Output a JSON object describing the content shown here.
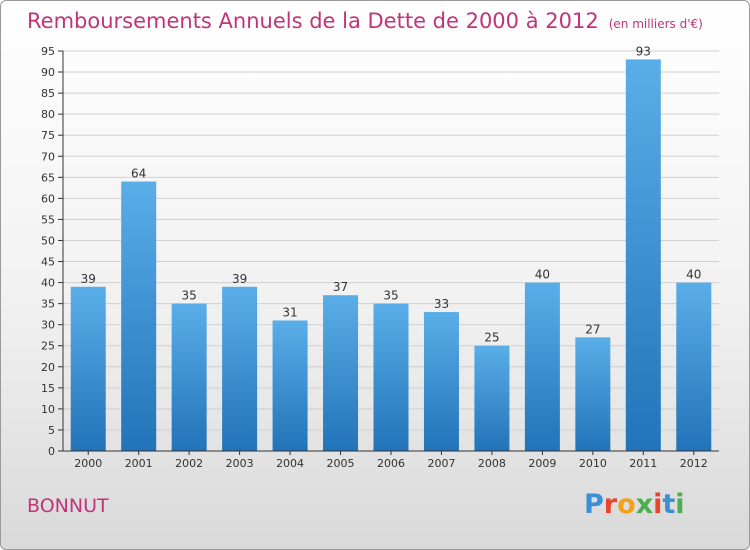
{
  "header": {
    "title": "Remboursements Annuels de la Dette de 2000 à 2012",
    "unit": "(en milliers d'€)"
  },
  "footer": {
    "commune": "BONNUT",
    "logo_text": "Proxiti",
    "logo_colors": [
      "#3a8fd6",
      "#e8452c",
      "#f2a21a",
      "#4cae4c",
      "#e8452c",
      "#3a8fd6",
      "#4cae4c"
    ]
  },
  "colors": {
    "accent": "#c2337a",
    "bar_top": "#5aaee8",
    "bar_bottom": "#2273b8",
    "grid": "#d0d0d0",
    "axis": "#333333"
  },
  "chart_data": {
    "type": "bar",
    "categories": [
      "2000",
      "2001",
      "2002",
      "2003",
      "2004",
      "2005",
      "2006",
      "2007",
      "2008",
      "2009",
      "2010",
      "2011",
      "2012"
    ],
    "values": [
      39,
      64,
      35,
      39,
      31,
      37,
      35,
      33,
      25,
      40,
      27,
      93,
      40
    ],
    "title": "Remboursements Annuels de la Dette de 2000 à 2012",
    "ylim": [
      0,
      95
    ],
    "yticks": [
      0,
      5,
      10,
      15,
      20,
      25,
      30,
      35,
      40,
      45,
      50,
      55,
      60,
      65,
      70,
      75,
      80,
      85,
      90,
      95
    ],
    "grid": true,
    "data_labels": true
  }
}
